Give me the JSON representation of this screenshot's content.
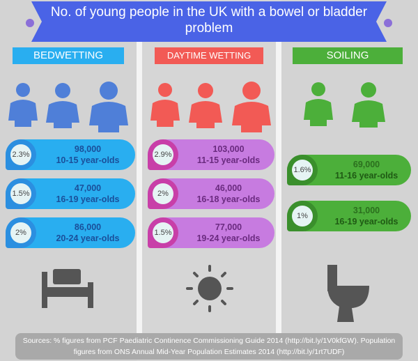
{
  "title": "No. of young people in the UK with a bowel or bladder problem",
  "columns": [
    {
      "heading": "BEDWETTING",
      "items": [
        {
          "percent": "2.3%",
          "count": "98,000",
          "ages": "10-15 year-olds"
        },
        {
          "percent": "1.5%",
          "count": "47,000",
          "ages": "16-19 year-olds"
        },
        {
          "percent": "2%",
          "count": "86,000",
          "ages": "20-24 year-olds"
        }
      ]
    },
    {
      "heading": "DAYTIME WETTING",
      "items": [
        {
          "percent": "2.9%",
          "count": "103,000",
          "ages": "11-15 year-olds"
        },
        {
          "percent": "2%",
          "count": "46,000",
          "ages": "16-18 year-olds"
        },
        {
          "percent": "1.5%",
          "count": "77,000",
          "ages": "19-24 year-olds"
        }
      ]
    },
    {
      "heading": "SOILING",
      "items": [
        {
          "percent": "1.6%",
          "count": "69,000",
          "ages": "11-16 year-olds"
        },
        {
          "percent": "1%",
          "count": "31,000",
          "ages": "16-19 year-olds"
        }
      ]
    }
  ],
  "source": "Sources: % figures from PCF Paediatric Continence Commissioning Guide 2014 (http://bit.ly/1V0kfGW). Population figures from ONS Annual Mid-Year Population Estimates 2014 (http://bit.ly/1rt7UDF)"
}
